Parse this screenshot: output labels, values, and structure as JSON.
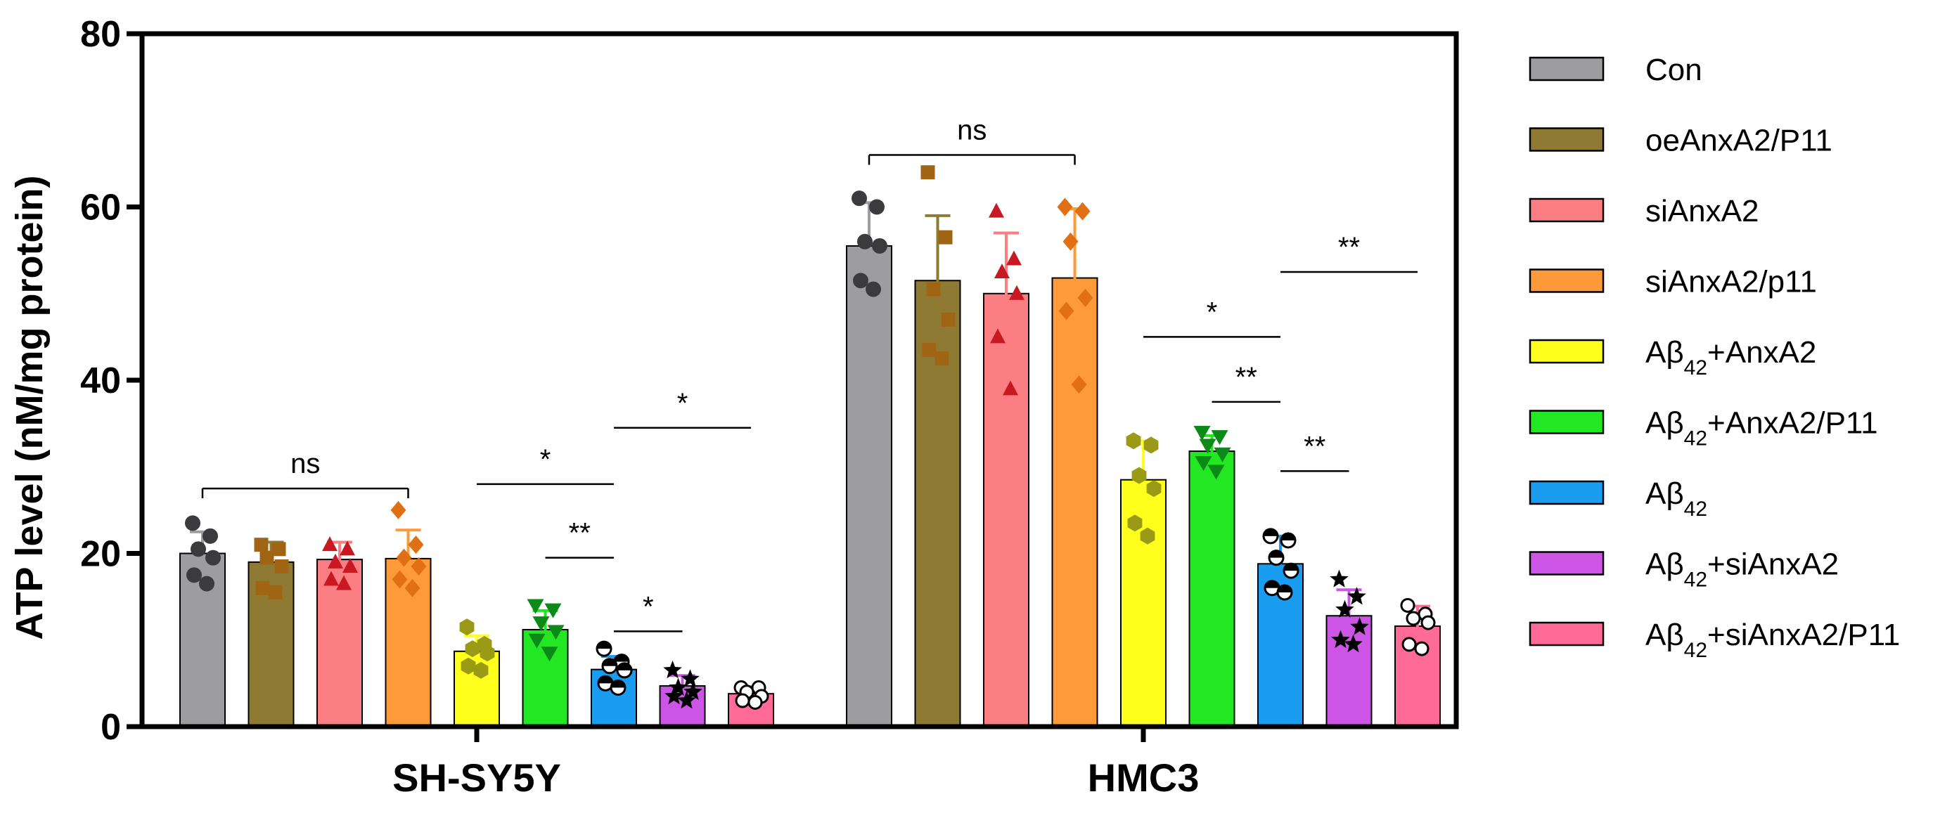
{
  "chart_data": {
    "type": "bar",
    "ylabel": "ATP level (nM/mg protein)",
    "ylim": [
      0,
      80
    ],
    "yticks": [
      "0",
      "20",
      "40",
      "60",
      "80"
    ],
    "categories": [
      "SH-SY5Y",
      "HMC3"
    ],
    "series": [
      {
        "name": "Con",
        "legend_main": "Con",
        "legend_sub": "",
        "legend_tail": "",
        "color": "#9d9da0",
        "marker": "circle",
        "values": [
          20.0,
          55.5
        ],
        "errors": [
          2.5,
          5.0
        ],
        "points": [
          [
            23.5,
            22.0,
            20.5,
            19.5,
            17.5,
            16.5
          ],
          [
            61.0,
            60.0,
            56.0,
            55.5,
            51.5,
            50.5
          ]
        ]
      },
      {
        "name": "oeAnxA2/P11",
        "legend_main": "oeAnxA2/P11",
        "legend_sub": "",
        "legend_tail": "",
        "color": "#8f7a33",
        "marker": "square",
        "values": [
          19.0,
          51.5
        ],
        "errors": [
          2.3,
          7.5
        ],
        "points": [
          [
            21.0,
            20.5,
            19.5,
            18.5,
            16.0,
            15.5
          ],
          [
            64.0,
            56.5,
            50.5,
            47.0,
            43.5,
            42.5
          ]
        ]
      },
      {
        "name": "siAnxA2",
        "legend_main": "siAnxA2",
        "legend_sub": "",
        "legend_tail": "",
        "color": "#fb7e82",
        "marker": "triangle",
        "values": [
          19.3,
          50.0
        ],
        "errors": [
          2.0,
          7.0
        ],
        "points": [
          [
            21.0,
            20.5,
            19.0,
            18.5,
            17.0,
            16.5
          ],
          [
            59.5,
            54.0,
            52.5,
            50.0,
            45.0,
            39.0
          ]
        ]
      },
      {
        "name": "siAnxA2/p11",
        "legend_main": "siAnxA2/p11",
        "legend_sub": "",
        "legend_tail": "",
        "color": "#ff9a3a",
        "marker": "diamond",
        "values": [
          19.4,
          51.8
        ],
        "errors": [
          3.3,
          8.0
        ],
        "points": [
          [
            25.0,
            21.0,
            19.5,
            18.5,
            17.0,
            16.0
          ],
          [
            60.0,
            59.5,
            56.0,
            49.5,
            48.0,
            39.5
          ]
        ]
      },
      {
        "name": "Aβ42+AnxA2",
        "legend_main": "Aβ",
        "legend_sub": "42",
        "legend_tail": "+AnxA2",
        "color": "#ffff1e",
        "marker": "hexagon",
        "values": [
          8.7,
          28.5
        ],
        "errors": [
          1.8,
          4.5
        ],
        "points": [
          [
            11.5,
            9.5,
            9.0,
            8.5,
            7.0,
            6.5
          ],
          [
            33.0,
            32.5,
            29.0,
            27.5,
            23.5,
            22.0
          ]
        ]
      },
      {
        "name": "Aβ42+AnxA2/P11",
        "legend_main": "Aβ",
        "legend_sub": "42",
        "legend_tail": "+AnxA2/P11",
        "color": "#23e723",
        "marker": "triangle-down",
        "values": [
          11.2,
          31.8
        ],
        "errors": [
          2.2,
          1.8
        ],
        "points": [
          [
            14.0,
            13.5,
            12.0,
            11.0,
            10.0,
            8.5
          ],
          [
            34.0,
            33.5,
            32.5,
            31.5,
            30.5,
            29.5
          ]
        ]
      },
      {
        "name": "Aβ42",
        "legend_main": "Aβ",
        "legend_sub": "42",
        "legend_tail": "",
        "color": "#1a9cf0",
        "marker": "half-circle",
        "values": [
          6.6,
          18.8
        ],
        "errors": [
          1.5,
          3.2
        ],
        "points": [
          [
            9.0,
            7.5,
            7.0,
            6.5,
            5.0,
            4.5
          ],
          [
            22.0,
            21.5,
            19.5,
            18.0,
            16.0,
            15.5
          ]
        ]
      },
      {
        "name": "Aβ42+siAnxA2",
        "legend_main": "Aβ",
        "legend_sub": "42",
        "legend_tail": "+siAnxA2",
        "color": "#cc55e6",
        "marker": "star",
        "values": [
          4.7,
          12.8
        ],
        "errors": [
          1.2,
          3.0
        ],
        "points": [
          [
            6.5,
            5.5,
            4.5,
            4.0,
            3.5,
            3.0
          ],
          [
            17.0,
            15.0,
            13.5,
            11.5,
            10.0,
            9.5
          ]
        ]
      },
      {
        "name": "Aβ42+siAnxA2/P11",
        "legend_main": "Aβ",
        "legend_sub": "42",
        "legend_tail": "+siAnxA2/P11",
        "color": "#ff6b96",
        "marker": "open-circle",
        "values": [
          3.8,
          11.6
        ],
        "errors": [
          0.8,
          2.3
        ],
        "points": [
          [
            4.5,
            4.5,
            4.0,
            3.5,
            3.0,
            2.8
          ],
          [
            14.0,
            13.0,
            12.5,
            12.0,
            9.5,
            9.0
          ]
        ]
      }
    ],
    "annotations": [
      {
        "group": 0,
        "from": 0,
        "to": 3,
        "y": 27.5,
        "label": "ns",
        "ticks": true
      },
      {
        "group": 0,
        "from": 4,
        "to": 6,
        "y": 28.0,
        "label": "*",
        "ticks": false
      },
      {
        "group": 0,
        "from": 5,
        "to": 6,
        "y": 19.5,
        "label": "**",
        "ticks": false
      },
      {
        "group": 0,
        "from": 6,
        "to": 7,
        "y": 11.0,
        "label": "*",
        "ticks": false
      },
      {
        "group": 0,
        "from": 6,
        "to": 8,
        "y": 34.5,
        "label": "*",
        "ticks": false
      },
      {
        "group": 1,
        "from": 0,
        "to": 3,
        "y": 66.0,
        "label": "ns",
        "ticks": true
      },
      {
        "group": 1,
        "from": 4,
        "to": 6,
        "y": 45.0,
        "label": "*",
        "ticks": false
      },
      {
        "group": 1,
        "from": 5,
        "to": 6,
        "y": 37.5,
        "label": "**",
        "ticks": false
      },
      {
        "group": 1,
        "from": 6,
        "to": 7,
        "y": 29.5,
        "label": "**",
        "ticks": false
      },
      {
        "group": 1,
        "from": 6,
        "to": 8,
        "y": 52.5,
        "label": "**",
        "ticks": false
      }
    ]
  }
}
